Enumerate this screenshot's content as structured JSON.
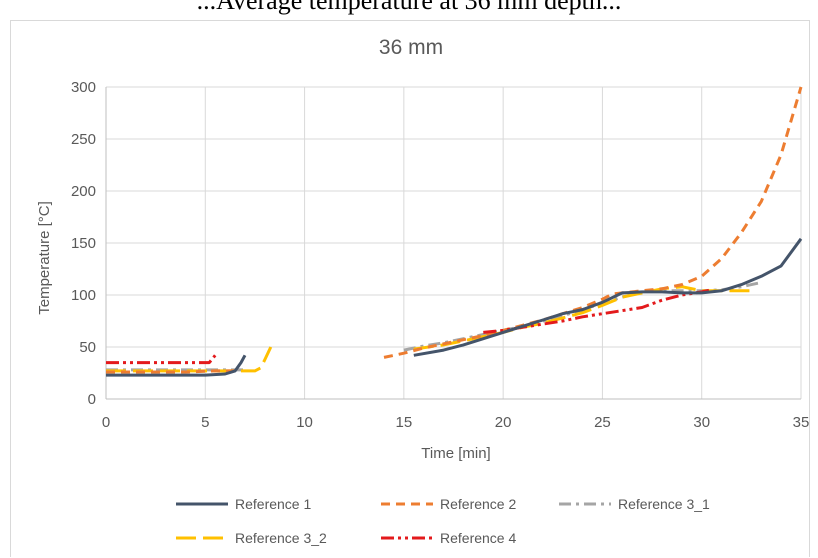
{
  "page": {
    "top_caption": "...Average temperature at 36 mm depth..."
  },
  "chart_data": {
    "type": "line",
    "title": "36 mm",
    "xlabel": "Time [min]",
    "ylabel": "Temperature [°C]",
    "xlim": [
      0,
      35
    ],
    "ylim": [
      0,
      300
    ],
    "x_ticks": [
      0,
      5,
      10,
      15,
      20,
      25,
      30,
      35
    ],
    "y_ticks": [
      0,
      50,
      100,
      150,
      200,
      250,
      300
    ],
    "grid": "both",
    "legend_position": "bottom",
    "series": [
      {
        "name": "Reference 1",
        "color": "#44546a",
        "dash": "solid",
        "segments": [
          [
            [
              0,
              23
            ],
            [
              1,
              23
            ],
            [
              2,
              23
            ],
            [
              3,
              23
            ],
            [
              4,
              23
            ],
            [
              5,
              23
            ],
            [
              6,
              24
            ],
            [
              6.5,
              27
            ],
            [
              6.8,
              35
            ],
            [
              7,
              42
            ]
          ],
          [
            [
              15.5,
              42
            ],
            [
              17,
              47
            ],
            [
              18,
              52
            ],
            [
              19,
              58
            ],
            [
              20,
              64
            ],
            [
              21,
              70
            ],
            [
              22,
              76
            ],
            [
              23,
              82
            ],
            [
              24,
              86
            ],
            [
              25,
              93
            ],
            [
              26,
              102
            ],
            [
              27,
              103
            ],
            [
              28,
              103
            ],
            [
              29,
              102
            ],
            [
              30,
              102
            ],
            [
              31,
              104
            ],
            [
              32,
              110
            ],
            [
              33,
              118
            ],
            [
              34,
              128
            ],
            [
              35,
              154
            ]
          ]
        ]
      },
      {
        "name": "Reference 2",
        "color": "#ed7d31",
        "dash": "dashed",
        "segments": [
          [
            [
              0,
              26
            ],
            [
              2,
              26
            ],
            [
              4,
              26
            ],
            [
              5.5,
              27
            ],
            [
              6.5,
              27
            ]
          ],
          [
            [
              14,
              40
            ],
            [
              15,
              44
            ],
            [
              16,
              49
            ],
            [
              17,
              53
            ],
            [
              18,
              57
            ],
            [
              19,
              61
            ],
            [
              20,
              66
            ],
            [
              21,
              71
            ],
            [
              22,
              76
            ],
            [
              23,
              82
            ],
            [
              24,
              88
            ],
            [
              25,
              96
            ],
            [
              25.5,
              101
            ],
            [
              26,
              102
            ],
            [
              27,
              104
            ],
            [
              28,
              106
            ],
            [
              29,
              110
            ],
            [
              30,
              118
            ],
            [
              31,
              135
            ],
            [
              32,
              160
            ],
            [
              33,
              190
            ],
            [
              34,
              235
            ],
            [
              35,
              300
            ]
          ]
        ]
      },
      {
        "name": "Reference 3_1",
        "color": "#a5a5a5",
        "dash": "dashdot",
        "segments": [
          [
            [
              0,
              28
            ],
            [
              2,
              28
            ],
            [
              4,
              28
            ],
            [
              6,
              28
            ],
            [
              7,
              28
            ]
          ],
          [
            [
              15,
              47
            ],
            [
              16,
              51
            ],
            [
              17,
              54
            ],
            [
              18,
              58
            ],
            [
              19,
              62
            ],
            [
              20,
              66
            ],
            [
              21,
              70
            ],
            [
              22,
              75
            ],
            [
              23,
              80
            ],
            [
              24,
              86
            ],
            [
              25,
              92
            ],
            [
              26,
              98
            ],
            [
              27,
              103
            ],
            [
              28,
              104
            ],
            [
              29,
              104
            ],
            [
              30,
              104
            ],
            [
              31,
              105
            ],
            [
              32,
              108
            ],
            [
              33,
              112
            ]
          ]
        ]
      },
      {
        "name": "Reference 3_2",
        "color": "#ffc000",
        "dash": "longdash",
        "segments": [
          [
            [
              0,
              27
            ],
            [
              2,
              27
            ],
            [
              4,
              27
            ],
            [
              6,
              27
            ],
            [
              7.5,
              27
            ],
            [
              7.8,
              30
            ],
            [
              8,
              38
            ],
            [
              8.3,
              50
            ]
          ],
          [
            [
              15.5,
              48
            ],
            [
              17,
              52
            ],
            [
              18,
              56
            ],
            [
              19,
              60
            ],
            [
              20,
              64
            ],
            [
              21,
              69
            ],
            [
              22,
              73
            ],
            [
              23,
              78
            ],
            [
              24,
              83
            ],
            [
              25,
              90
            ],
            [
              26,
              98
            ],
            [
              27,
              102
            ],
            [
              28,
              106
            ],
            [
              29,
              108
            ],
            [
              30,
              104
            ],
            [
              31,
              104
            ],
            [
              32,
              104
            ],
            [
              32.5,
              104
            ]
          ]
        ]
      },
      {
        "name": "Reference 4",
        "color": "#e31a1c",
        "dash": "dashdotdot",
        "segments": [
          [
            [
              0,
              35
            ],
            [
              2,
              35
            ],
            [
              4,
              35
            ],
            [
              5.2,
              35
            ],
            [
              5.5,
              42
            ]
          ],
          [
            [
              19,
              64
            ],
            [
              20,
              66
            ],
            [
              21,
              69
            ],
            [
              22,
              72
            ],
            [
              23,
              75
            ],
            [
              24,
              79
            ],
            [
              25,
              82
            ],
            [
              26,
              85
            ],
            [
              27,
              88
            ],
            [
              28,
              95
            ],
            [
              29,
              100
            ],
            [
              30,
              103
            ],
            [
              30.5,
              105
            ]
          ]
        ]
      }
    ]
  }
}
